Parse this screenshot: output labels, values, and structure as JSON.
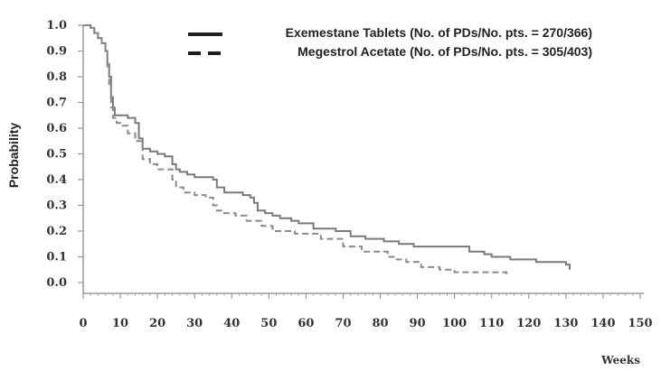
{
  "chart_data": {
    "type": "line",
    "step": true,
    "xlabel": "Weeks",
    "ylabel": "Probability",
    "xlim": [
      0,
      150
    ],
    "ylim": [
      0.0,
      1.0
    ],
    "xticks": [
      0,
      10,
      20,
      30,
      40,
      50,
      60,
      70,
      80,
      90,
      100,
      110,
      120,
      130,
      140,
      150
    ],
    "yticks": [
      0.0,
      0.1,
      0.2,
      0.3,
      0.4,
      0.5,
      0.6,
      0.7,
      0.8,
      0.9,
      1.0
    ],
    "ytick_labels": [
      "0.0",
      "0.1",
      "0.2",
      "0.3",
      "0.4",
      "0.5",
      "0.6",
      "0.7",
      "0.8",
      "0.9",
      "1.0"
    ],
    "grid": false,
    "legend_position": "top-right",
    "series": [
      {
        "name": "Exemestane Tablets (No. of PDs/No. pts. = 270/366)",
        "style": "solid",
        "color": "#7a7a7a",
        "x": [
          0,
          1,
          2,
          3,
          4,
          5,
          6,
          6.5,
          7,
          7.5,
          8,
          8.5,
          9,
          10,
          12,
          14,
          15,
          16,
          18,
          20,
          22,
          24,
          25,
          26,
          28,
          30,
          32,
          35,
          36,
          38,
          42,
          43,
          45,
          46,
          47,
          49,
          51,
          53,
          56,
          58,
          62,
          68,
          72,
          76,
          81,
          85,
          89,
          95,
          100,
          104,
          108,
          110,
          115,
          122,
          126,
          130,
          131
        ],
        "y": [
          1.0,
          1.0,
          0.99,
          0.97,
          0.95,
          0.93,
          0.9,
          0.85,
          0.8,
          0.72,
          0.68,
          0.65,
          0.65,
          0.65,
          0.64,
          0.62,
          0.56,
          0.52,
          0.51,
          0.5,
          0.49,
          0.46,
          0.44,
          0.43,
          0.42,
          0.41,
          0.41,
          0.4,
          0.37,
          0.35,
          0.35,
          0.34,
          0.33,
          0.31,
          0.28,
          0.27,
          0.26,
          0.25,
          0.24,
          0.23,
          0.21,
          0.2,
          0.18,
          0.17,
          0.16,
          0.15,
          0.14,
          0.14,
          0.14,
          0.12,
          0.11,
          0.1,
          0.09,
          0.08,
          0.08,
          0.07,
          0.05
        ]
      },
      {
        "name": "Megestrol Acetate (No. of PDs/No. pts. = 305/403)",
        "style": "dashed",
        "color": "#8a8a8a",
        "x": [
          0,
          1,
          2,
          3,
          4,
          5,
          6,
          6.5,
          7,
          7.5,
          8,
          9,
          10,
          12,
          14,
          16,
          18,
          20,
          24,
          25,
          27,
          30,
          33,
          35,
          36,
          38,
          41,
          44,
          48,
          51,
          57,
          64,
          70,
          75,
          82,
          84,
          87,
          91,
          96,
          100,
          105,
          110,
          114
        ],
        "y": [
          1.0,
          1.0,
          0.99,
          0.97,
          0.95,
          0.93,
          0.9,
          0.84,
          0.76,
          0.68,
          0.64,
          0.62,
          0.61,
          0.58,
          0.55,
          0.48,
          0.46,
          0.44,
          0.4,
          0.37,
          0.35,
          0.34,
          0.33,
          0.3,
          0.28,
          0.27,
          0.26,
          0.24,
          0.22,
          0.2,
          0.19,
          0.17,
          0.14,
          0.12,
          0.1,
          0.09,
          0.08,
          0.06,
          0.05,
          0.04,
          0.04,
          0.04,
          0.03
        ]
      }
    ]
  }
}
